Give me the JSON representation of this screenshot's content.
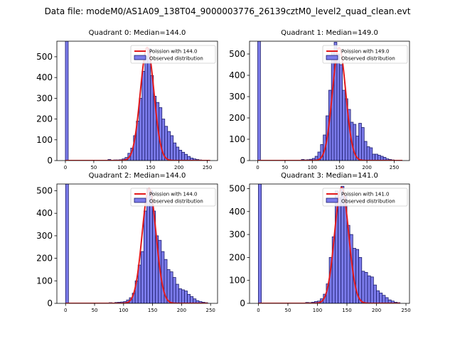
{
  "figure_title": "Data file: modeM0/AS1A09_138T04_9000003776_26139cztM0_level2_quad_clean.evt",
  "colors": {
    "hist_fill": "#7b7bea",
    "hist_edge": "#1a1a6a",
    "poisson_line": "#e31a1c",
    "axes": "#000000"
  },
  "chart_data": [
    {
      "type": "bar",
      "title": "Quadrant 0: Median=144.0",
      "legend": {
        "position": "top-right",
        "line_label": "Poission with 144.0",
        "bar_label": "Observed distribution"
      },
      "xlim": [
        -15,
        268
      ],
      "ylim": [
        0,
        575
      ],
      "xticks": [
        0,
        50,
        100,
        150,
        200,
        250
      ],
      "yticks": [
        0,
        100,
        200,
        300,
        400,
        500
      ],
      "bin_width": 5,
      "bars": [
        {
          "x": 0,
          "y": 575
        },
        {
          "x": 75,
          "y": 5
        },
        {
          "x": 80,
          "y": 2
        },
        {
          "x": 85,
          "y": 3
        },
        {
          "x": 90,
          "y": 3
        },
        {
          "x": 95,
          "y": 4
        },
        {
          "x": 100,
          "y": 8
        },
        {
          "x": 105,
          "y": 15
        },
        {
          "x": 110,
          "y": 35
        },
        {
          "x": 115,
          "y": 60
        },
        {
          "x": 120,
          "y": 120
        },
        {
          "x": 125,
          "y": 190
        },
        {
          "x": 130,
          "y": 300
        },
        {
          "x": 135,
          "y": 430
        },
        {
          "x": 140,
          "y": 500
        },
        {
          "x": 145,
          "y": 540
        },
        {
          "x": 150,
          "y": 410
        },
        {
          "x": 155,
          "y": 310
        },
        {
          "x": 160,
          "y": 280
        },
        {
          "x": 165,
          "y": 255
        },
        {
          "x": 170,
          "y": 200
        },
        {
          "x": 175,
          "y": 165
        },
        {
          "x": 180,
          "y": 140
        },
        {
          "x": 185,
          "y": 120
        },
        {
          "x": 190,
          "y": 85
        },
        {
          "x": 195,
          "y": 65
        },
        {
          "x": 200,
          "y": 50
        },
        {
          "x": 205,
          "y": 40
        },
        {
          "x": 210,
          "y": 30
        },
        {
          "x": 215,
          "y": 20
        },
        {
          "x": 220,
          "y": 12
        },
        {
          "x": 225,
          "y": 8
        },
        {
          "x": 230,
          "y": 5
        },
        {
          "x": 235,
          "y": 3
        },
        {
          "x": 240,
          "y": 2
        }
      ],
      "poisson_line": {
        "mean": 144.0,
        "peak": 545,
        "xmin": 0,
        "xmax": 255
      }
    },
    {
      "type": "bar",
      "title": "Quadrant 1: Median=149.0",
      "legend": {
        "position": "top-right",
        "line_label": "Poission with 149.0",
        "bar_label": "Observed distribution"
      },
      "xlim": [
        -15,
        278
      ],
      "ylim": [
        0,
        560
      ],
      "xticks": [
        0,
        50,
        100,
        150,
        200,
        250
      ],
      "yticks": [
        0,
        100,
        200,
        300,
        400,
        500
      ],
      "bin_width": 5,
      "bars": [
        {
          "x": 0,
          "y": 560
        },
        {
          "x": 80,
          "y": 5
        },
        {
          "x": 85,
          "y": 3
        },
        {
          "x": 90,
          "y": 4
        },
        {
          "x": 95,
          "y": 6
        },
        {
          "x": 100,
          "y": 10
        },
        {
          "x": 105,
          "y": 20
        },
        {
          "x": 110,
          "y": 40
        },
        {
          "x": 115,
          "y": 75
        },
        {
          "x": 120,
          "y": 120
        },
        {
          "x": 125,
          "y": 210
        },
        {
          "x": 130,
          "y": 330
        },
        {
          "x": 135,
          "y": 515
        },
        {
          "x": 140,
          "y": 555
        },
        {
          "x": 145,
          "y": 500
        },
        {
          "x": 150,
          "y": 450
        },
        {
          "x": 155,
          "y": 330
        },
        {
          "x": 160,
          "y": 290
        },
        {
          "x": 165,
          "y": 240
        },
        {
          "x": 170,
          "y": 180
        },
        {
          "x": 175,
          "y": 170
        },
        {
          "x": 180,
          "y": 115
        },
        {
          "x": 185,
          "y": 175
        },
        {
          "x": 190,
          "y": 155
        },
        {
          "x": 195,
          "y": 90
        },
        {
          "x": 200,
          "y": 65
        },
        {
          "x": 205,
          "y": 60
        },
        {
          "x": 210,
          "y": 30
        },
        {
          "x": 215,
          "y": 30
        },
        {
          "x": 220,
          "y": 25
        },
        {
          "x": 225,
          "y": 20
        },
        {
          "x": 230,
          "y": 15
        },
        {
          "x": 235,
          "y": 8
        },
        {
          "x": 240,
          "y": 5
        },
        {
          "x": 245,
          "y": 3
        }
      ],
      "poisson_line": {
        "mean": 149.0,
        "peak": 530,
        "xmin": 0,
        "xmax": 265
      }
    },
    {
      "type": "bar",
      "title": "Quadrant 2: Median=144.0",
      "legend": {
        "position": "top-right",
        "line_label": "Poission with 144.0",
        "bar_label": "Observed distribution"
      },
      "xlim": [
        -15,
        262
      ],
      "ylim": [
        0,
        530
      ],
      "xticks": [
        0,
        50,
        100,
        150,
        200,
        250
      ],
      "yticks": [
        0,
        100,
        200,
        300,
        400,
        500
      ],
      "bin_width": 5,
      "bars": [
        {
          "x": 0,
          "y": 530
        },
        {
          "x": 75,
          "y": 3
        },
        {
          "x": 80,
          "y": 2
        },
        {
          "x": 85,
          "y": 4
        },
        {
          "x": 90,
          "y": 5
        },
        {
          "x": 95,
          "y": 6
        },
        {
          "x": 100,
          "y": 8
        },
        {
          "x": 105,
          "y": 15
        },
        {
          "x": 110,
          "y": 25
        },
        {
          "x": 115,
          "y": 45
        },
        {
          "x": 120,
          "y": 100
        },
        {
          "x": 125,
          "y": 170
        },
        {
          "x": 130,
          "y": 230
        },
        {
          "x": 135,
          "y": 410
        },
        {
          "x": 140,
          "y": 510
        },
        {
          "x": 145,
          "y": 500
        },
        {
          "x": 150,
          "y": 410
        },
        {
          "x": 155,
          "y": 300
        },
        {
          "x": 160,
          "y": 280
        },
        {
          "x": 165,
          "y": 230
        },
        {
          "x": 170,
          "y": 195
        },
        {
          "x": 175,
          "y": 150
        },
        {
          "x": 180,
          "y": 140
        },
        {
          "x": 185,
          "y": 115
        },
        {
          "x": 190,
          "y": 85
        },
        {
          "x": 195,
          "y": 65
        },
        {
          "x": 200,
          "y": 60
        },
        {
          "x": 205,
          "y": 55
        },
        {
          "x": 210,
          "y": 40
        },
        {
          "x": 215,
          "y": 30
        },
        {
          "x": 220,
          "y": 20
        },
        {
          "x": 225,
          "y": 12
        },
        {
          "x": 230,
          "y": 8
        },
        {
          "x": 235,
          "y": 5
        },
        {
          "x": 240,
          "y": 3
        }
      ],
      "poisson_line": {
        "mean": 144.0,
        "peak": 510,
        "xmin": 0,
        "xmax": 245
      }
    },
    {
      "type": "bar",
      "title": "Quadrant 3: Median=141.0",
      "legend": {
        "position": "top-right",
        "line_label": "Poission with 141.0",
        "bar_label": "Observed distribution"
      },
      "xlim": [
        -15,
        256
      ],
      "ylim": [
        0,
        520
      ],
      "xticks": [
        0,
        50,
        100,
        150,
        200,
        250
      ],
      "yticks": [
        0,
        100,
        200,
        300,
        400,
        500
      ],
      "bin_width": 5,
      "bars": [
        {
          "x": 0,
          "y": 520
        },
        {
          "x": 80,
          "y": 4
        },
        {
          "x": 85,
          "y": 3
        },
        {
          "x": 90,
          "y": 5
        },
        {
          "x": 95,
          "y": 8
        },
        {
          "x": 100,
          "y": 10
        },
        {
          "x": 105,
          "y": 20
        },
        {
          "x": 110,
          "y": 40
        },
        {
          "x": 115,
          "y": 85
        },
        {
          "x": 120,
          "y": 200
        },
        {
          "x": 125,
          "y": 290
        },
        {
          "x": 130,
          "y": 490
        },
        {
          "x": 135,
          "y": 460
        },
        {
          "x": 140,
          "y": 510
        },
        {
          "x": 145,
          "y": 470
        },
        {
          "x": 150,
          "y": 340
        },
        {
          "x": 155,
          "y": 300
        },
        {
          "x": 160,
          "y": 240
        },
        {
          "x": 165,
          "y": 235
        },
        {
          "x": 170,
          "y": 200
        },
        {
          "x": 175,
          "y": 140
        },
        {
          "x": 180,
          "y": 135
        },
        {
          "x": 185,
          "y": 120
        },
        {
          "x": 190,
          "y": 115
        },
        {
          "x": 195,
          "y": 80
        },
        {
          "x": 200,
          "y": 55
        },
        {
          "x": 205,
          "y": 45
        },
        {
          "x": 210,
          "y": 35
        },
        {
          "x": 215,
          "y": 25
        },
        {
          "x": 220,
          "y": 15
        },
        {
          "x": 225,
          "y": 10
        },
        {
          "x": 230,
          "y": 5
        },
        {
          "x": 235,
          "y": 3
        }
      ],
      "poisson_line": {
        "mean": 141.0,
        "peak": 505,
        "xmin": 0,
        "xmax": 240
      }
    }
  ]
}
